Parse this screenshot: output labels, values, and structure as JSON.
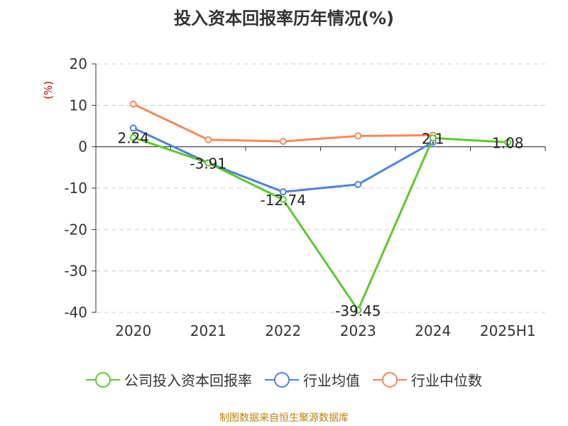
{
  "title": "投入资本回报率历年情况(%)",
  "source": "制图数据来自恒生聚源数据库",
  "chart_data": {
    "type": "line",
    "title": "投入资本回报率历年情况(%)",
    "ylabel": "(%)",
    "xlabel": "",
    "categories": [
      "2020",
      "2021",
      "2022",
      "2023",
      "2024",
      "2025H1"
    ],
    "y_ticks": [
      "20",
      "10",
      "0",
      "-10",
      "-20",
      "-30",
      "-40"
    ],
    "ylim": [
      -40,
      20
    ],
    "grid": true,
    "legend_position": "bottom",
    "series": [
      {
        "name": "公司投入资本回报率",
        "color": "#5cc92e",
        "values": [
          2.24,
          -3.91,
          -12.74,
          -39.45,
          2.1,
          1.08
        ],
        "labels": [
          "2.24",
          "-3.91",
          "-12.74",
          "-39.45",
          "2.1",
          "1.08"
        ]
      },
      {
        "name": "行业均值",
        "color": "#4f80e0",
        "values": [
          4.5,
          -3.9,
          -10.9,
          -9.1,
          1.1,
          null
        ]
      },
      {
        "name": "行业中位数",
        "color": "#f5895a",
        "values": [
          10.3,
          1.7,
          1.3,
          2.6,
          2.8,
          null
        ]
      }
    ]
  }
}
